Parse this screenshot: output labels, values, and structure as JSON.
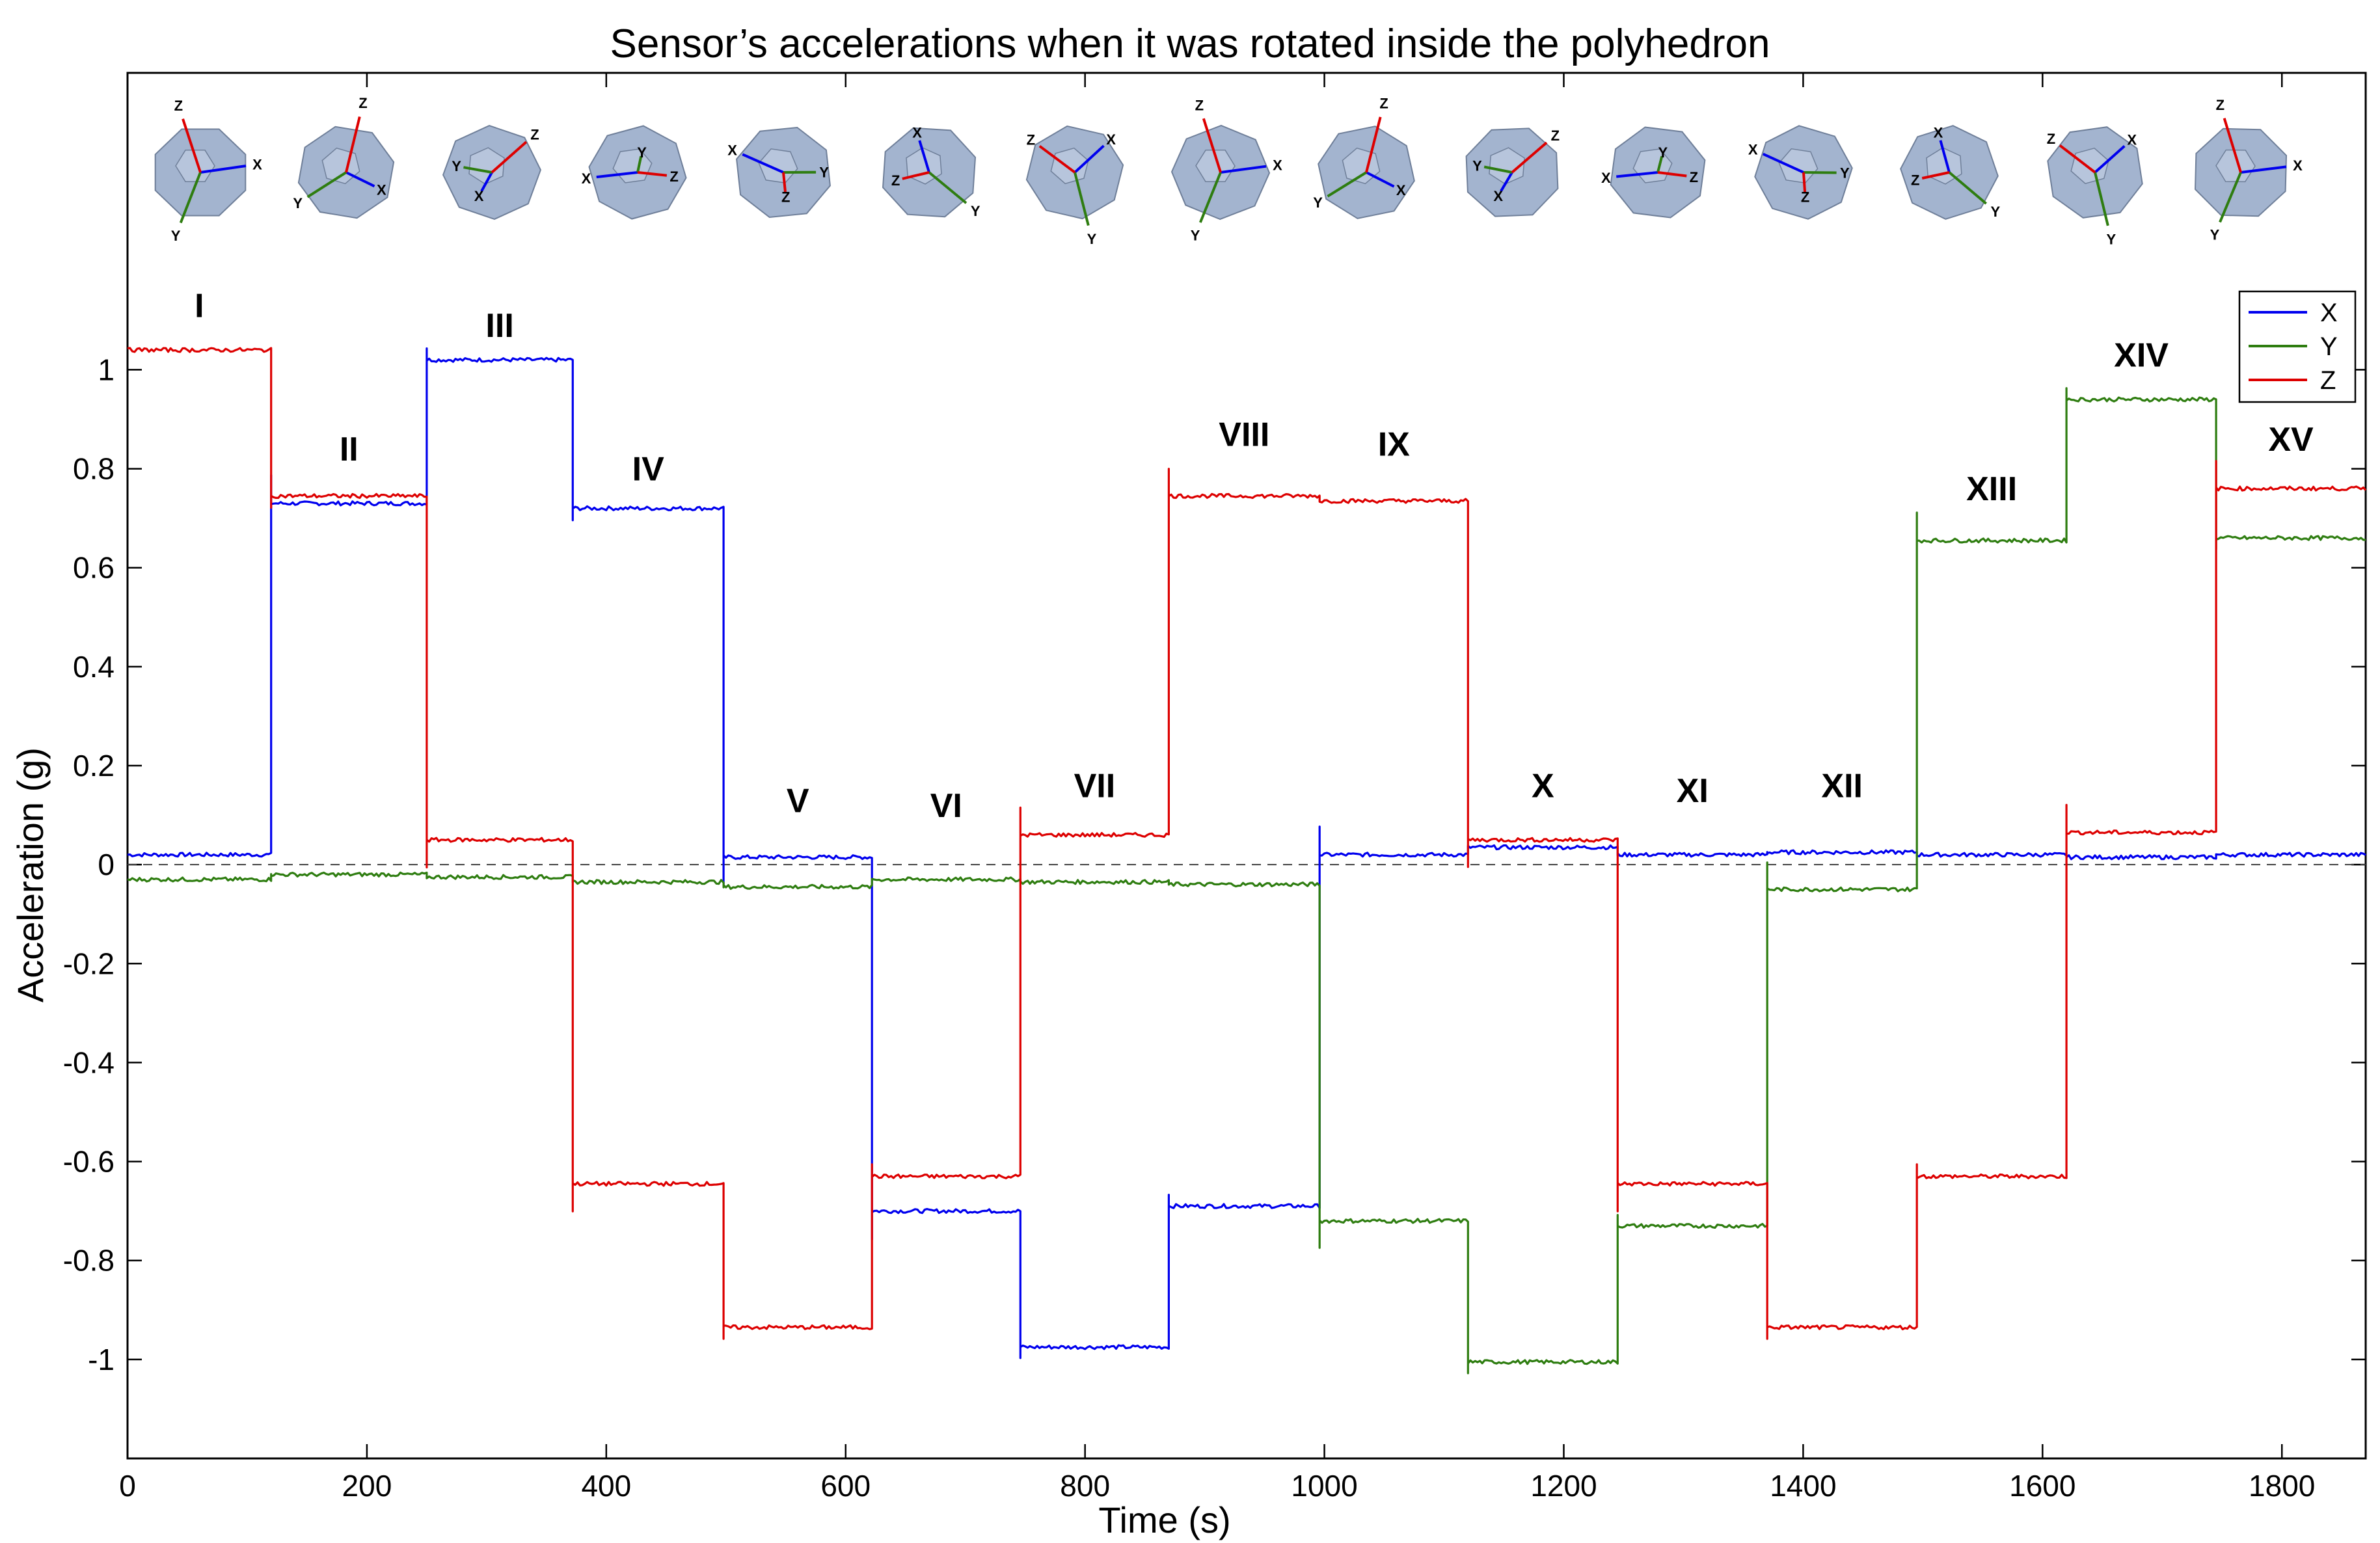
{
  "chart_data": {
    "type": "line",
    "title": "Sensor’s accelerations when it was rotated inside the polyhedron",
    "xlabel": "Time (s)",
    "ylabel": "Acceleration (g)",
    "xlim": [
      0,
      1870
    ],
    "ylim": [
      -1.2,
      1.6
    ],
    "xticks": [
      "0",
      "200",
      "400",
      "600",
      "800",
      "1000",
      "1200",
      "1400",
      "1600",
      "1800"
    ],
    "xtick_values": [
      0,
      200,
      400,
      600,
      800,
      1000,
      1200,
      1400,
      1600,
      1800
    ],
    "yticks": [
      "1",
      "0.8",
      "0.6",
      "0.4",
      "0.2",
      "0",
      "-0.2",
      "-0.4",
      "-0.6",
      "-0.8",
      "-1"
    ],
    "ytick_values": [
      1,
      0.8,
      0.6,
      0.4,
      0.2,
      0,
      -0.2,
      -0.4,
      -0.6,
      -0.8,
      -1
    ],
    "reference_line": 0,
    "legend": [
      "X",
      "Y",
      "Z"
    ],
    "legend_position": "top-right",
    "segment_boundaries": [
      0,
      120,
      250,
      372,
      498,
      622,
      746,
      870,
      996,
      1120,
      1245,
      1370,
      1495,
      1620,
      1745,
      1870
    ],
    "segment_labels": [
      "I",
      "II",
      "III",
      "IV",
      "V",
      "VI",
      "VII",
      "VIII",
      "IX",
      "X",
      "XI",
      "XII",
      "XIII",
      "XIV",
      "XV"
    ],
    "segment_label_levels": [
      1.13,
      0.84,
      1.09,
      0.8,
      0.13,
      0.12,
      0.16,
      0.87,
      0.85,
      0.16,
      0.15,
      0.16,
      0.76,
      1.03,
      0.86
    ],
    "series": [
      {
        "name": "X",
        "color": "#0000ee",
        "values": [
          0.02,
          0.73,
          1.02,
          0.72,
          0.015,
          -0.7,
          -0.975,
          -0.69,
          0.02,
          0.035,
          0.02,
          0.025,
          0.02,
          0.015,
          0.02
        ]
      },
      {
        "name": "Y",
        "color": "#2e7d10",
        "values": [
          -0.03,
          -0.02,
          -0.025,
          -0.035,
          -0.045,
          -0.03,
          -0.035,
          -0.04,
          -0.72,
          -1.005,
          -0.73,
          -0.05,
          0.655,
          0.94,
          0.66
        ]
      },
      {
        "name": "Z",
        "color": "#dd0000",
        "values": [
          1.04,
          0.745,
          0.05,
          -0.645,
          -0.935,
          -0.63,
          0.06,
          0.745,
          0.735,
          0.05,
          -0.645,
          -0.935,
          -0.63,
          0.065,
          0.76
        ]
      }
    ],
    "orientation_axis_letters": [
      "X",
      "Y",
      "Z"
    ]
  },
  "colors": {
    "polyhedron": "#a3b4cf",
    "polyhedron_edge": "#6f7f99"
  }
}
